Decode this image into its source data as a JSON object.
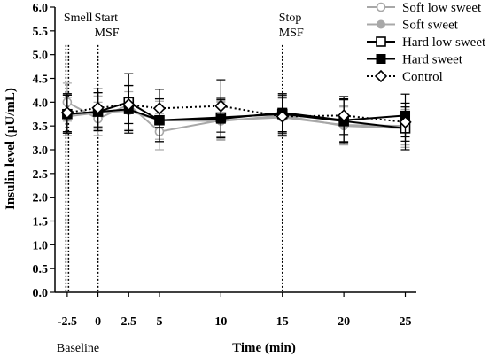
{
  "chart_data": {
    "type": "line",
    "xlabel": "Time (min)",
    "ylabel": "Insulin level (µU/mL)",
    "xticks": [
      -2.5,
      0,
      2.5,
      5,
      10,
      15,
      20,
      25
    ],
    "xtick_labels": [
      "-2.5",
      "0",
      "2.5",
      "5",
      "10",
      "15",
      "20",
      "25"
    ],
    "ylim": [
      0,
      6
    ],
    "yticks": [
      0,
      0.5,
      1,
      1.5,
      2,
      2.5,
      3,
      3.5,
      4,
      4.5,
      5,
      5.5,
      6
    ],
    "ytick_labels": [
      "0.0",
      "0.5",
      "1.0",
      "1.5",
      "2.0",
      "2.5",
      "3.0",
      "3.5",
      "4.0",
      "4.5",
      "5.0",
      "5.5",
      "6.0"
    ],
    "below_axis_label": "Baseline",
    "annotations": [
      {
        "x": -2.5,
        "text": "Smell"
      },
      {
        "x": 0,
        "text": "Start\nMSF"
      },
      {
        "x": 15,
        "text": "Stop\nMSF"
      }
    ],
    "legend_position": "top-right",
    "x": [
      -2.5,
      0,
      2.5,
      5,
      10,
      15,
      20,
      25
    ],
    "series": [
      {
        "name": "Soft low sweet",
        "values": [
          4.0,
          3.65,
          3.95,
          3.38,
          3.62,
          3.68,
          3.52,
          3.5
        ],
        "err": [
          0.4,
          0.35,
          0.4,
          0.38,
          0.4,
          0.4,
          0.4,
          0.4
        ],
        "color": "#a8a8a8",
        "marker": "circle-open",
        "dash": "solid"
      },
      {
        "name": "Soft sweet",
        "values": [
          3.7,
          3.78,
          3.82,
          3.62,
          3.6,
          3.72,
          3.5,
          3.45
        ],
        "err": [
          0.4,
          0.35,
          0.4,
          0.4,
          0.4,
          0.4,
          0.4,
          0.4
        ],
        "color": "#a8a8a8",
        "marker": "circle-filled",
        "dash": "solid"
      },
      {
        "name": "Hard low sweet",
        "values": [
          3.75,
          3.8,
          4.0,
          3.62,
          3.68,
          3.75,
          3.6,
          3.45
        ],
        "err": [
          0.4,
          0.4,
          0.6,
          0.45,
          0.4,
          0.4,
          0.45,
          0.45
        ],
        "color": "#000000",
        "marker": "square-open",
        "dash": "solid"
      },
      {
        "name": "Hard sweet",
        "values": [
          3.75,
          3.8,
          3.85,
          3.62,
          3.65,
          3.78,
          3.62,
          3.72
        ],
        "err": [
          0.4,
          0.4,
          0.5,
          0.45,
          0.4,
          0.4,
          0.45,
          0.45
        ],
        "color": "#000000",
        "marker": "square-filled",
        "dash": "solid"
      },
      {
        "name": "Control",
        "values": [
          3.78,
          3.88,
          3.95,
          3.87,
          3.92,
          3.7,
          3.72,
          3.58
        ],
        "err": [
          0.4,
          0.4,
          0.4,
          0.4,
          0.55,
          0.4,
          0.4,
          0.4
        ],
        "color": "#000000",
        "marker": "diamond-open",
        "dash": "dotted"
      }
    ]
  }
}
